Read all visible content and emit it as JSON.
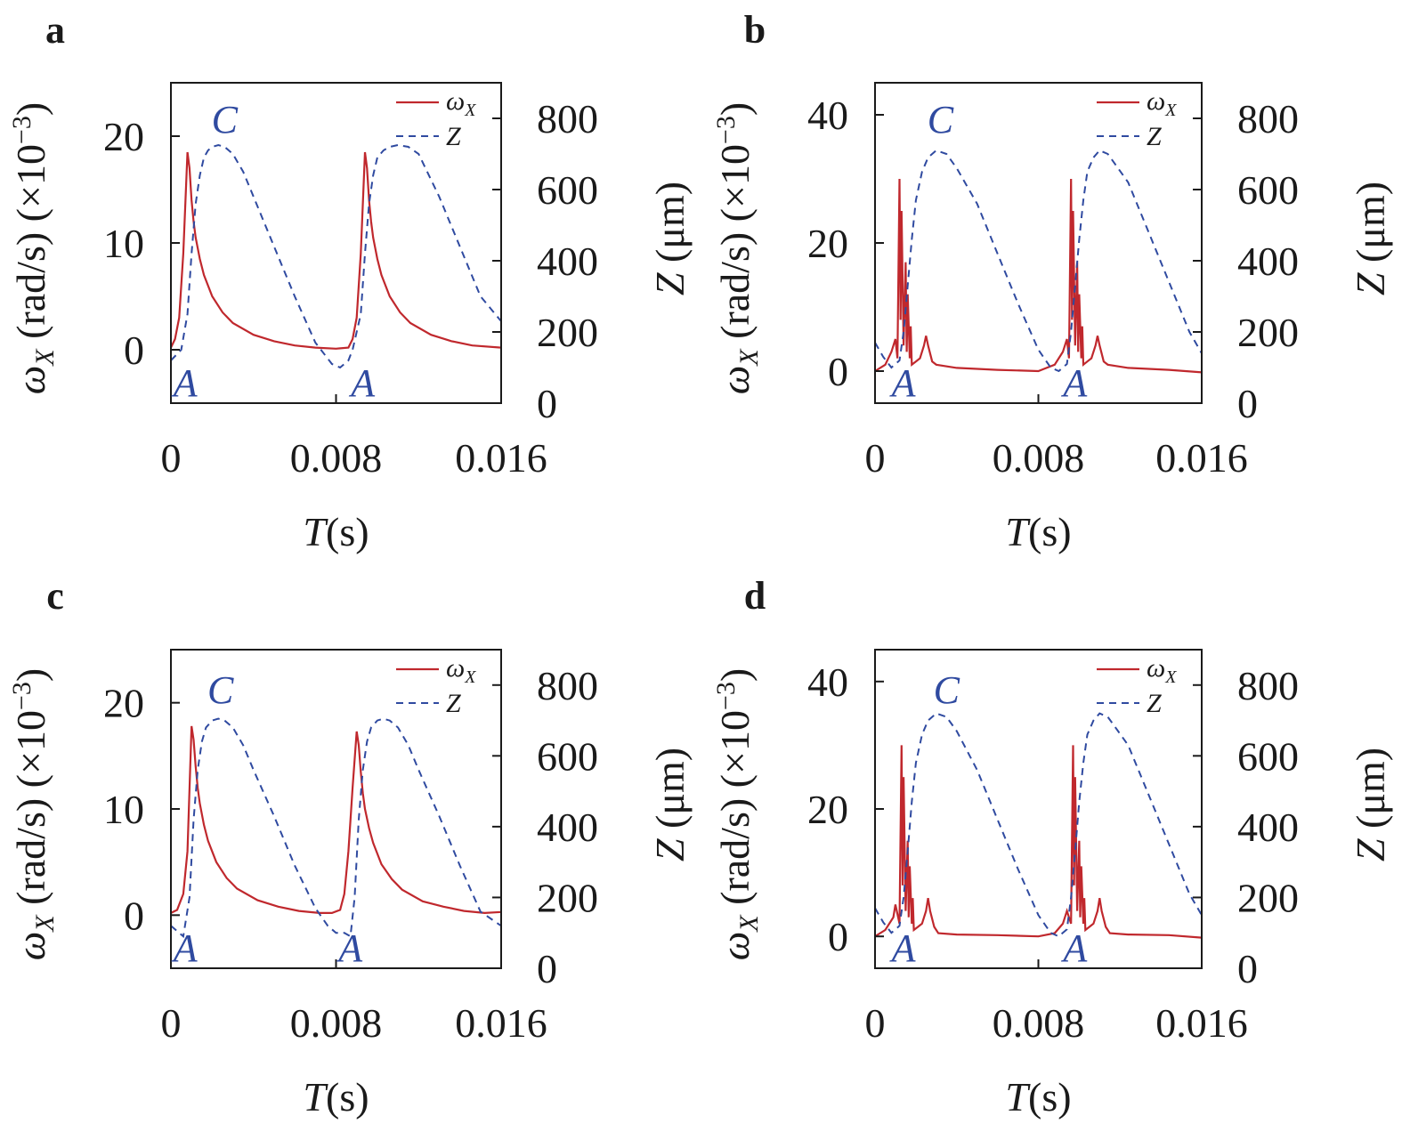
{
  "chart_data": [
    {
      "panel": "a",
      "type": "line",
      "xlabel": "T(s)",
      "ylabel_left": "ωX (rad/s) (×10−3)",
      "ylabel_right": "Z (μm)",
      "xlim": [
        0,
        0.016
      ],
      "x_ticks": [
        "0",
        "0.008",
        "0.016"
      ],
      "ylim_left": [
        -5,
        25
      ],
      "y_ticks_left": [
        "0",
        "10",
        "20"
      ],
      "ylim_right": [
        0,
        900
      ],
      "y_ticks_right": [
        "0",
        "200",
        "400",
        "600",
        "800"
      ],
      "legend": {
        "position": "top-right",
        "entries": [
          "ωX",
          "Z"
        ]
      },
      "annotations": [
        {
          "text": "C",
          "x": 0.0026,
          "y_right": 800
        },
        {
          "text": "A",
          "x": 0.0007,
          "y_right": 60
        },
        {
          "text": "A",
          "x": 0.0093,
          "y_right": 60
        }
      ],
      "series": [
        {
          "name": "ωX",
          "axis": "left",
          "style": "solid-red",
          "x": [
            0,
            0.0002,
            0.0004,
            0.0006,
            0.0008,
            0.0009,
            0.001,
            0.0011,
            0.0012,
            0.0014,
            0.0016,
            0.002,
            0.0025,
            0.003,
            0.004,
            0.005,
            0.006,
            0.007,
            0.008,
            0.0086,
            0.0088,
            0.009,
            0.0092,
            0.0094,
            0.0095,
            0.0096,
            0.0097,
            0.0098,
            0.01,
            0.0102,
            0.0106,
            0.0111,
            0.0116,
            0.0126,
            0.0136,
            0.0146,
            0.016
          ],
          "y": [
            0.2,
            1,
            3,
            9,
            18.5,
            17,
            14,
            12,
            10.5,
            8.5,
            7,
            5,
            3.5,
            2.5,
            1.4,
            0.8,
            0.4,
            0.2,
            0.1,
            0.2,
            1,
            3,
            9,
            18.5,
            17,
            14,
            12,
            10.5,
            8.5,
            7,
            5,
            3.5,
            2.5,
            1.4,
            0.8,
            0.4,
            0.2
          ]
        },
        {
          "name": "Z",
          "axis": "right",
          "style": "dashed-blue",
          "x": [
            0,
            0.0005,
            0.0008,
            0.001,
            0.0012,
            0.0014,
            0.0016,
            0.0018,
            0.002,
            0.0023,
            0.0026,
            0.003,
            0.0035,
            0.004,
            0.005,
            0.006,
            0.007,
            0.0078,
            0.0082,
            0.0086,
            0.0088,
            0.0092,
            0.0094,
            0.0096,
            0.0098,
            0.01,
            0.0103,
            0.0106,
            0.011,
            0.0115,
            0.012,
            0.013,
            0.014,
            0.015,
            0.016
          ],
          "y": [
            120,
            150,
            250,
            420,
            560,
            640,
            690,
            710,
            720,
            725,
            720,
            700,
            650,
            580,
            440,
            300,
            170,
            110,
            100,
            120,
            150,
            250,
            420,
            560,
            640,
            690,
            710,
            720,
            725,
            720,
            700,
            580,
            440,
            300,
            230
          ]
        }
      ]
    },
    {
      "panel": "b",
      "type": "line",
      "xlabel": "T(s)",
      "ylabel_left": "ωX (rad/s) (×10−3)",
      "ylabel_right": "Z (μm)",
      "xlim": [
        0,
        0.016
      ],
      "x_ticks": [
        "0",
        "0.008",
        "0.016"
      ],
      "ylim_left": [
        -5,
        45
      ],
      "y_ticks_left": [
        "0",
        "20",
        "40"
      ],
      "ylim_right": [
        0,
        900
      ],
      "y_ticks_right": [
        "0",
        "200",
        "400",
        "600",
        "800"
      ],
      "legend": {
        "position": "top-right",
        "entries": [
          "ωX",
          "Z"
        ]
      },
      "annotations": [
        {
          "text": "C",
          "x": 0.0032,
          "y_right": 800
        },
        {
          "text": "A",
          "x": 0.0014,
          "y_right": 60
        },
        {
          "text": "A",
          "x": 0.0098,
          "y_right": 60
        }
      ],
      "series": [
        {
          "name": "ωX",
          "axis": "left",
          "style": "solid-red",
          "x": [
            0,
            0.0005,
            0.0008,
            0.001,
            0.0011,
            0.0012,
            0.00125,
            0.0013,
            0.0014,
            0.0015,
            0.00155,
            0.0016,
            0.0017,
            0.00175,
            0.0018,
            0.002,
            0.0022,
            0.0024,
            0.0025,
            0.0026,
            0.0028,
            0.003,
            0.004,
            0.006,
            0.008,
            0.0084,
            0.0088,
            0.0092,
            0.0094,
            0.0095,
            0.0096,
            0.00965,
            0.0097,
            0.0098,
            0.0099,
            0.00995,
            0.01,
            0.0101,
            0.01015,
            0.0102,
            0.0104,
            0.0106,
            0.0108,
            0.0109,
            0.011,
            0.0112,
            0.0114,
            0.0124,
            0.0144,
            0.016
          ],
          "y": [
            0,
            1,
            3,
            5,
            2,
            30,
            8,
            25,
            4,
            17,
            3,
            12,
            2,
            7,
            1,
            1.5,
            2,
            4,
            5.5,
            4,
            1.5,
            1,
            0.5,
            0.2,
            0,
            0.5,
            1,
            3,
            5,
            2,
            30,
            8,
            25,
            4,
            17,
            3,
            12,
            2,
            7,
            1,
            1.5,
            2,
            4,
            5.5,
            4,
            1.5,
            1,
            0.5,
            0.2,
            -0.2
          ]
        },
        {
          "name": "Z",
          "axis": "right",
          "style": "dashed-blue",
          "x": [
            0,
            0.0004,
            0.0008,
            0.0012,
            0.0014,
            0.0016,
            0.0018,
            0.002,
            0.0023,
            0.0026,
            0.003,
            0.0035,
            0.004,
            0.005,
            0.006,
            0.007,
            0.008,
            0.0086,
            0.009,
            0.0094,
            0.0096,
            0.0098,
            0.01,
            0.0102,
            0.0104,
            0.0107,
            0.011,
            0.0114,
            0.0119,
            0.0124,
            0.0134,
            0.0144,
            0.0154,
            0.016
          ],
          "y": [
            170,
            130,
            100,
            120,
            200,
            330,
            460,
            570,
            650,
            690,
            710,
            700,
            660,
            560,
            420,
            280,
            150,
            100,
            90,
            110,
            200,
            330,
            460,
            570,
            650,
            690,
            710,
            700,
            660,
            620,
            480,
            340,
            200,
            140
          ]
        }
      ]
    },
    {
      "panel": "c",
      "type": "line",
      "xlabel": "T(s)",
      "ylabel_left": "ωX (rad/s) (×10−3)",
      "ylabel_right": "Z (μm)",
      "xlim": [
        0,
        0.016
      ],
      "x_ticks": [
        "0",
        "0.008",
        "0.016"
      ],
      "ylim_left": [
        -5,
        25
      ],
      "y_ticks_left": [
        "0",
        "10",
        "20"
      ],
      "ylim_right": [
        0,
        900
      ],
      "y_ticks_right": [
        "0",
        "200",
        "400",
        "600",
        "800"
      ],
      "legend": {
        "position": "top-right",
        "entries": [
          "ωX",
          "Z"
        ]
      },
      "annotations": [
        {
          "text": "C",
          "x": 0.0024,
          "y_right": 790
        },
        {
          "text": "A",
          "x": 0.0007,
          "y_right": 60
        },
        {
          "text": "A",
          "x": 0.0087,
          "y_right": 60
        }
      ],
      "series": [
        {
          "name": "ωX",
          "axis": "left",
          "style": "solid-red",
          "x": [
            0,
            0.0003,
            0.0006,
            0.0008,
            0.001,
            0.0011,
            0.0012,
            0.0013,
            0.0014,
            0.0016,
            0.0018,
            0.0022,
            0.0027,
            0.0032,
            0.0042,
            0.0052,
            0.0062,
            0.0072,
            0.0078,
            0.0082,
            0.0084,
            0.0086,
            0.0088,
            0.009,
            0.0091,
            0.0092,
            0.0093,
            0.0094,
            0.0096,
            0.0098,
            0.0102,
            0.0107,
            0.0112,
            0.0122,
            0.0132,
            0.0142,
            0.0152,
            0.016
          ],
          "y": [
            0.2,
            0.5,
            2,
            6,
            17.8,
            16.5,
            14,
            12,
            10.5,
            8.5,
            7,
            5,
            3.5,
            2.5,
            1.4,
            0.8,
            0.4,
            0.2,
            0.2,
            0.5,
            2,
            6,
            12,
            17.3,
            16,
            13.5,
            11.5,
            10,
            8.2,
            6.8,
            4.8,
            3.4,
            2.4,
            1.3,
            0.8,
            0.4,
            0.2,
            0.3
          ]
        },
        {
          "name": "Z",
          "axis": "right",
          "style": "dashed-blue",
          "x": [
            0,
            0.0006,
            0.0009,
            0.0011,
            0.0013,
            0.0015,
            0.0017,
            0.002,
            0.0023,
            0.0026,
            0.003,
            0.0035,
            0.004,
            0.005,
            0.006,
            0.007,
            0.0076,
            0.008,
            0.0084,
            0.0087,
            0.0089,
            0.0091,
            0.0093,
            0.0095,
            0.0097,
            0.01,
            0.0103,
            0.0106,
            0.011,
            0.0115,
            0.012,
            0.013,
            0.014,
            0.015,
            0.016
          ],
          "y": [
            120,
            90,
            200,
            420,
            560,
            640,
            680,
            700,
            705,
            700,
            680,
            630,
            560,
            430,
            290,
            170,
            120,
            100,
            100,
            90,
            200,
            420,
            560,
            640,
            680,
            700,
            705,
            700,
            680,
            630,
            560,
            430,
            290,
            160,
            120
          ]
        }
      ]
    },
    {
      "panel": "d",
      "type": "line",
      "xlabel": "T(s)",
      "ylabel_left": "ωX (rad/s) (×10−3)",
      "ylabel_right": "Z (μm)",
      "xlim": [
        0,
        0.016
      ],
      "x_ticks": [
        "0",
        "0.008",
        "0.016"
      ],
      "ylim_left": [
        -5,
        45
      ],
      "y_ticks_left": [
        "0",
        "20",
        "40"
      ],
      "ylim_right": [
        0,
        900
      ],
      "y_ticks_right": [
        "0",
        "200",
        "400",
        "600",
        "800"
      ],
      "legend": {
        "position": "top-right",
        "entries": [
          "ωX",
          "Z"
        ]
      },
      "annotations": [
        {
          "text": "C",
          "x": 0.0035,
          "y_right": 790
        },
        {
          "text": "A",
          "x": 0.0014,
          "y_right": 60
        },
        {
          "text": "A",
          "x": 0.0098,
          "y_right": 60
        }
      ],
      "series": [
        {
          "name": "ωX",
          "axis": "left",
          "style": "solid-red",
          "x": [
            0,
            0.0005,
            0.0009,
            0.001,
            0.0012,
            0.0013,
            0.00135,
            0.0014,
            0.0015,
            0.0016,
            0.00165,
            0.0017,
            0.0018,
            0.00185,
            0.0019,
            0.0021,
            0.0023,
            0.0025,
            0.0026,
            0.0027,
            0.0029,
            0.0031,
            0.004,
            0.006,
            0.008,
            0.0088,
            0.0092,
            0.0094,
            0.0096,
            0.0097,
            0.00975,
            0.0098,
            0.0099,
            0.01,
            0.01005,
            0.0101,
            0.0102,
            0.01025,
            0.0103,
            0.0105,
            0.0107,
            0.0109,
            0.011,
            0.0111,
            0.0113,
            0.0115,
            0.0124,
            0.0144,
            0.016
          ],
          "y": [
            0,
            1,
            3,
            5,
            2,
            30,
            8,
            25,
            4,
            15,
            3,
            11,
            2,
            6,
            1,
            1.5,
            2,
            4,
            6,
            4,
            1.5,
            0.5,
            0.3,
            0.2,
            0,
            0.5,
            2,
            4,
            2,
            30,
            8,
            25,
            4,
            15,
            3,
            11,
            2,
            6,
            1,
            1.5,
            2,
            4,
            6,
            4,
            1.5,
            0.5,
            0.3,
            0.2,
            -0.2
          ]
        },
        {
          "name": "Z",
          "axis": "right",
          "style": "dashed-blue",
          "x": [
            0,
            0.0004,
            0.0008,
            0.0012,
            0.0014,
            0.0016,
            0.0018,
            0.002,
            0.0023,
            0.0026,
            0.003,
            0.0035,
            0.004,
            0.005,
            0.006,
            0.007,
            0.008,
            0.0086,
            0.009,
            0.0094,
            0.0096,
            0.0098,
            0.01,
            0.0102,
            0.0104,
            0.0107,
            0.011,
            0.0114,
            0.0119,
            0.0124,
            0.0134,
            0.0144,
            0.0154,
            0.016
          ],
          "y": [
            170,
            130,
            100,
            120,
            200,
            330,
            470,
            580,
            660,
            700,
            720,
            710,
            670,
            560,
            420,
            280,
            150,
            100,
            90,
            110,
            200,
            330,
            470,
            580,
            660,
            700,
            720,
            710,
            670,
            630,
            490,
            350,
            210,
            150
          ]
        }
      ]
    }
  ]
}
